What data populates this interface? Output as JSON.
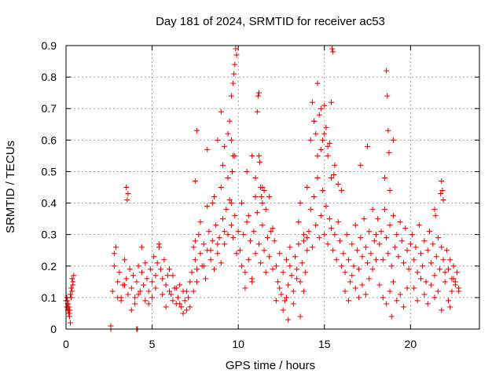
{
  "chart_data": {
    "type": "scatter",
    "title": "Day 181 of 2024, SRMTID for receiver ac53",
    "xlabel": "GPS time / hours",
    "ylabel": "SRMTID / TECUs",
    "xlim": [
      0,
      24
    ],
    "ylim": [
      0,
      0.9
    ],
    "xticks": [
      0,
      5,
      10,
      15,
      20
    ],
    "yticks": [
      0,
      0.1,
      0.2,
      0.3,
      0.4,
      0.5,
      0.6,
      0.7,
      0.8,
      0.9
    ],
    "xtick_labels": [
      "0",
      "5",
      "10",
      "15",
      "20"
    ],
    "ytick_labels": [
      "0",
      "0.1",
      "0.2",
      "0.3",
      "0.4",
      "0.5",
      "0.6",
      "0.7",
      "0.8",
      "0.9"
    ],
    "grid": true,
    "marker": "+",
    "series": [
      {
        "name": "SRMTID",
        "color": "#e00000",
        "x": [
          0.0,
          0.05,
          0.1,
          0.12,
          0.15,
          0.18,
          0.2,
          0.22,
          0.25,
          0.3,
          0.35,
          0.4,
          0.45,
          0.05,
          0.08,
          0.1,
          0.15,
          0.2,
          0.25,
          0.3,
          0.35,
          0.4,
          2.6,
          2.6,
          2.7,
          2.8,
          2.9,
          3.0,
          3.1,
          3.2,
          3.3,
          3.4,
          3.5,
          3.6,
          3.7,
          3.8,
          3.9,
          4.0,
          4.1,
          4.2,
          4.3,
          4.4,
          4.5,
          4.6,
          4.7,
          4.8,
          4.9,
          5.0,
          5.1,
          5.2,
          5.3,
          5.4,
          5.5,
          5.6,
          5.7,
          5.8,
          5.9,
          6.0,
          2.8,
          3.0,
          3.2,
          3.4,
          3.5,
          3.55,
          3.6,
          3.8,
          4.0,
          4.2,
          4.4,
          4.6,
          4.8,
          5.0,
          5.2,
          5.4,
          5.6,
          5.8,
          6.0,
          4.1,
          4.15,
          6.1,
          6.2,
          6.3,
          6.4,
          6.5,
          6.6,
          6.7,
          6.8,
          6.9,
          7.0,
          7.1,
          7.2,
          6.2,
          6.4,
          6.6,
          6.8,
          7.0,
          7.2,
          7.3,
          7.4,
          7.5,
          7.6,
          7.7,
          7.8,
          7.9,
          8.0,
          8.1,
          8.2,
          8.3,
          8.4,
          8.5,
          8.6,
          8.7,
          8.8,
          8.9,
          9.0,
          9.1,
          9.2,
          9.3,
          9.4,
          9.5,
          9.6,
          9.7,
          9.8,
          9.9,
          10.0,
          7.4,
          7.5,
          7.6,
          7.8,
          8.0,
          8.2,
          8.4,
          8.6,
          8.8,
          9.0,
          9.2,
          9.4,
          9.6,
          9.8,
          7.5,
          7.6,
          8.2,
          8.5,
          8.8,
          9.0,
          9.1,
          9.2,
          9.4,
          9.5,
          9.6,
          9.7,
          9.75,
          9.8,
          9.85,
          9.9,
          9.6,
          9.7,
          9.65,
          10.1,
          10.2,
          10.3,
          10.4,
          10.5,
          10.6,
          10.7,
          10.8,
          10.9,
          11.0,
          11.1,
          11.2,
          11.3,
          11.4,
          11.5,
          11.6,
          11.7,
          11.8,
          11.9,
          12.0,
          10.2,
          10.4,
          10.6,
          10.8,
          11.0,
          11.2,
          11.4,
          11.6,
          11.8,
          12.0,
          10.5,
          10.8,
          11.0,
          11.1,
          11.15,
          11.2,
          11.25,
          11.3,
          11.35,
          11.4,
          11.5,
          12.1,
          12.2,
          12.3,
          12.4,
          12.5,
          12.6,
          12.7,
          12.8,
          12.9,
          13.0,
          13.1,
          13.2,
          13.3,
          13.4,
          13.5,
          13.6,
          13.7,
          13.8,
          13.9,
          14.0,
          12.2,
          12.4,
          12.6,
          12.8,
          13.0,
          13.2,
          13.4,
          13.6,
          13.8,
          14.0,
          12.9,
          13.5,
          13.6,
          13.8,
          14.0,
          14.1,
          14.2,
          14.3,
          14.4,
          14.5,
          14.6,
          14.7,
          14.8,
          14.9,
          15.0,
          15.1,
          15.2,
          15.3,
          15.4,
          15.5,
          15.6,
          15.7,
          15.8,
          15.9,
          16.0,
          14.2,
          14.4,
          14.6,
          14.8,
          15.0,
          15.2,
          15.4,
          15.6,
          15.8,
          16.0,
          14.3,
          14.4,
          14.5,
          14.6,
          14.7,
          14.8,
          14.9,
          15.0,
          15.1,
          15.2,
          15.3,
          15.4,
          15.45,
          15.5,
          15.55,
          16.1,
          16.2,
          16.3,
          16.4,
          16.5,
          16.6,
          16.7,
          16.8,
          16.9,
          17.0,
          17.1,
          17.2,
          17.3,
          17.4,
          17.5,
          17.6,
          17.7,
          17.8,
          17.9,
          18.0,
          16.2,
          16.4,
          16.6,
          16.8,
          17.0,
          17.2,
          17.4,
          17.6,
          17.8,
          18.0,
          17.1,
          17.5,
          18.1,
          18.2,
          18.3,
          18.4,
          18.5,
          18.6,
          18.7,
          18.8,
          18.9,
          19.0,
          19.1,
          19.2,
          19.3,
          19.4,
          19.5,
          19.6,
          19.7,
          19.8,
          19.9,
          20.0,
          18.2,
          18.4,
          18.6,
          18.8,
          19.0,
          19.2,
          19.4,
          19.6,
          19.8,
          18.6,
          18.65,
          18.7,
          18.75,
          18.8,
          18.5,
          18.9,
          19.0,
          20.1,
          20.2,
          20.3,
          20.4,
          20.5,
          20.6,
          20.7,
          20.8,
          20.9,
          21.0,
          21.1,
          21.2,
          21.3,
          21.4,
          21.5,
          21.6,
          21.7,
          21.8,
          21.9,
          22.0,
          20.2,
          20.4,
          20.6,
          20.8,
          21.0,
          21.2,
          21.4,
          21.6,
          21.8,
          22.0,
          21.8,
          21.85,
          21.9,
          21.75,
          21.4,
          21.45,
          22.1,
          22.2,
          22.3,
          22.4,
          22.5,
          22.6,
          22.7,
          22.8,
          22.2,
          22.4,
          22.6,
          22.8,
          22.3,
          22.5
        ],
        "y": [
          0.09,
          0.07,
          0.06,
          0.08,
          0.05,
          0.07,
          0.04,
          0.06,
          0.02,
          0.1,
          0.12,
          0.15,
          0.17,
          0.1,
          0.09,
          0.08,
          0.06,
          0.05,
          0.11,
          0.13,
          0.16,
          0.14,
          0.0,
          0.01,
          0.12,
          0.2,
          0.26,
          0.15,
          0.18,
          0.1,
          0.14,
          0.22,
          0.16,
          0.11,
          0.19,
          0.13,
          0.17,
          0.1,
          0.15,
          0.2,
          0.12,
          0.18,
          0.14,
          0.21,
          0.16,
          0.12,
          0.19,
          0.15,
          0.23,
          0.17,
          0.21,
          0.26,
          0.19,
          0.16,
          0.22,
          0.14,
          0.17,
          0.12,
          0.24,
          0.1,
          0.09,
          0.14,
          0.45,
          0.41,
          0.43,
          0.06,
          0.08,
          0.11,
          0.26,
          0.09,
          0.08,
          0.1,
          0.13,
          0.27,
          0.11,
          0.07,
          0.19,
          0.0,
          0.0,
          0.11,
          0.09,
          0.13,
          0.08,
          0.1,
          0.14,
          0.07,
          0.12,
          0.09,
          0.06,
          0.1,
          0.15,
          0.17,
          0.13,
          0.08,
          0.05,
          0.12,
          0.07,
          0.18,
          0.26,
          0.22,
          0.19,
          0.3,
          0.24,
          0.2,
          0.27,
          0.16,
          0.25,
          0.31,
          0.22,
          0.28,
          0.19,
          0.33,
          0.24,
          0.29,
          0.21,
          0.35,
          0.27,
          0.38,
          0.3,
          0.41,
          0.33,
          0.29,
          0.36,
          0.24,
          0.31,
          0.12,
          0.28,
          0.15,
          0.34,
          0.2,
          0.39,
          0.25,
          0.42,
          0.27,
          0.45,
          0.31,
          0.48,
          0.4,
          0.55,
          0.47,
          0.63,
          0.57,
          0.4,
          0.6,
          0.69,
          0.52,
          0.58,
          0.62,
          0.66,
          0.74,
          0.78,
          0.81,
          0.84,
          0.89,
          0.87,
          0.6,
          0.55,
          0.5,
          0.25,
          0.2,
          0.3,
          0.18,
          0.34,
          0.22,
          0.28,
          0.16,
          0.31,
          0.24,
          0.37,
          0.27,
          0.21,
          0.33,
          0.25,
          0.18,
          0.29,
          0.23,
          0.31,
          0.19,
          0.4,
          0.13,
          0.36,
          0.15,
          0.42,
          0.55,
          0.45,
          0.38,
          0.42,
          0.32,
          0.5,
          0.55,
          0.48,
          0.69,
          0.74,
          0.75,
          0.53,
          0.45,
          0.42,
          0.4,
          0.44,
          0.28,
          0.2,
          0.15,
          0.24,
          0.11,
          0.18,
          0.09,
          0.22,
          0.14,
          0.26,
          0.17,
          0.12,
          0.23,
          0.19,
          0.27,
          0.15,
          0.21,
          0.3,
          0.18,
          0.25,
          0.09,
          0.13,
          0.06,
          0.1,
          0.2,
          0.08,
          0.16,
          0.04,
          0.12,
          0.29,
          0.03,
          0.34,
          0.4,
          0.28,
          0.45,
          0.31,
          0.38,
          0.26,
          0.42,
          0.33,
          0.48,
          0.29,
          0.36,
          0.44,
          0.3,
          0.39,
          0.27,
          0.35,
          0.32,
          0.25,
          0.3,
          0.22,
          0.34,
          0.28,
          0.2,
          0.6,
          0.66,
          0.55,
          0.7,
          0.62,
          0.58,
          0.48,
          0.52,
          0.46,
          0.44,
          0.72,
          0.66,
          0.62,
          0.78,
          0.68,
          0.57,
          0.6,
          0.71,
          0.64,
          0.55,
          0.59,
          0.72,
          0.89,
          0.88,
          0.49,
          0.24,
          0.18,
          0.3,
          0.22,
          0.15,
          0.27,
          0.2,
          0.33,
          0.25,
          0.19,
          0.29,
          0.23,
          0.35,
          0.26,
          0.21,
          0.31,
          0.24,
          0.38,
          0.28,
          0.22,
          0.12,
          0.09,
          0.17,
          0.13,
          0.1,
          0.14,
          0.11,
          0.16,
          0.19,
          0.3,
          0.52,
          0.58,
          0.35,
          0.27,
          0.31,
          0.22,
          0.38,
          0.29,
          0.24,
          0.33,
          0.2,
          0.36,
          0.26,
          0.3,
          0.23,
          0.34,
          0.28,
          0.21,
          0.32,
          0.25,
          0.19,
          0.27,
          0.14,
          0.1,
          0.08,
          0.12,
          0.15,
          0.09,
          0.11,
          0.07,
          0.13,
          0.82,
          0.74,
          0.63,
          0.56,
          0.44,
          0.48,
          0.04,
          0.6,
          0.3,
          0.22,
          0.26,
          0.18,
          0.33,
          0.24,
          0.2,
          0.28,
          0.15,
          0.25,
          0.31,
          0.21,
          0.27,
          0.17,
          0.23,
          0.29,
          0.19,
          0.26,
          0.22,
          0.18,
          0.13,
          0.09,
          0.16,
          0.11,
          0.08,
          0.14,
          0.1,
          0.12,
          0.06,
          0.15,
          0.47,
          0.44,
          0.41,
          0.43,
          0.38,
          0.36,
          0.25,
          0.19,
          0.22,
          0.16,
          0.2,
          0.14,
          0.18,
          0.12,
          0.09,
          0.12,
          0.15,
          0.13,
          0.07,
          0.16
        ]
      }
    ]
  }
}
